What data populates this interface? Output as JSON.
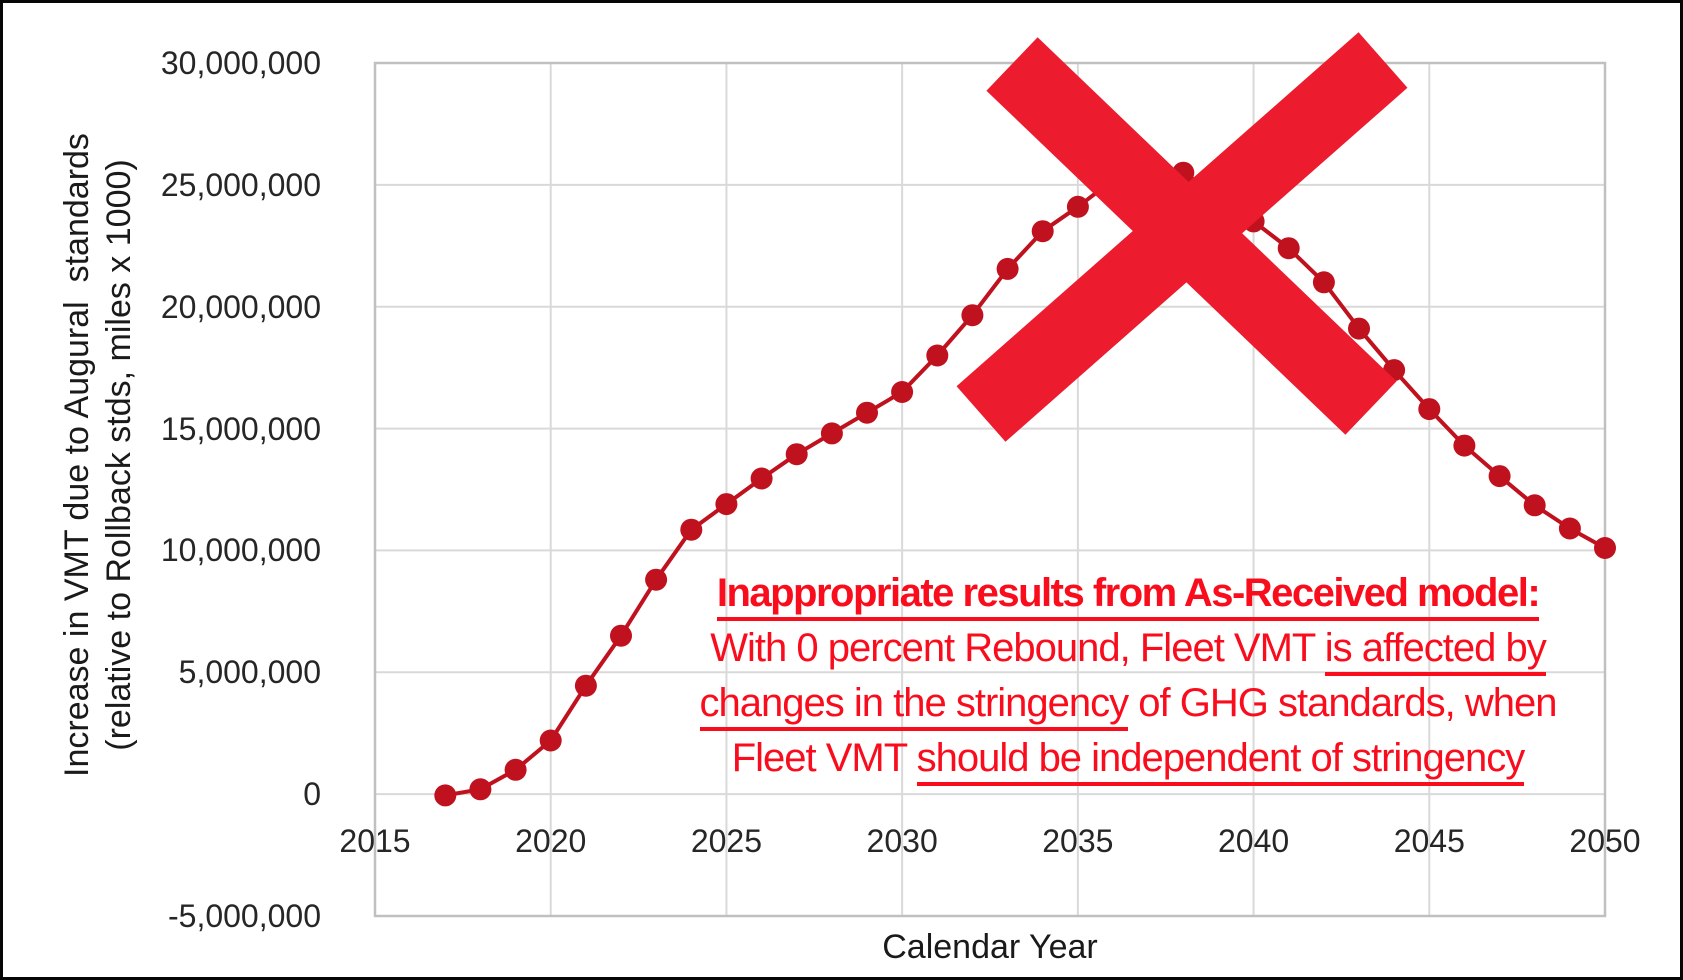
{
  "colors": {
    "background": "#FFFFFF",
    "outer_border": "#060606",
    "plot_border": "#C0C0C0",
    "gridline": "#D9D9D9",
    "tick_text": "#262626",
    "axis_title_text": "#1A1A1A",
    "series": "#C0111E",
    "red_x": "#EC1B2D",
    "annotation_text": "#F90D1D"
  },
  "y_axis": {
    "title_line1": "Increase in VMT due to Augural  standards",
    "title_line2": "(relative to Rollback stds, miles x 1000)",
    "tick_labels": [
      "30,000,000",
      "25,000,000",
      "20,000,000",
      "15,000,000",
      "10,000,000",
      "5,000,000",
      "0",
      "-5,000,000"
    ],
    "tick_values": [
      30000000,
      25000000,
      20000000,
      15000000,
      10000000,
      5000000,
      0,
      -5000000
    ]
  },
  "x_axis": {
    "title": "Calendar Year",
    "tick_labels": [
      "2015",
      "2020",
      "2025",
      "2030",
      "2035",
      "2040",
      "2045",
      "2050"
    ],
    "tick_values": [
      2015,
      2020,
      2025,
      2030,
      2035,
      2040,
      2045,
      2050
    ]
  },
  "annotation": {
    "lines": [
      {
        "bold": true,
        "segments": [
          {
            "text": "Inappropriate results from As-Received model:",
            "underline": true
          }
        ]
      },
      {
        "bold": false,
        "segments": [
          {
            "text": "With 0 percent Rebound, Fleet VMT ",
            "underline": false
          },
          {
            "text": "is affected by",
            "underline": true
          }
        ]
      },
      {
        "bold": false,
        "segments": [
          {
            "text": "changes in the stringency",
            "underline": true
          },
          {
            "text": " of GHG standards, when",
            "underline": false
          }
        ]
      },
      {
        "bold": false,
        "segments": [
          {
            "text": "Fleet VMT ",
            "underline": false
          },
          {
            "text": "should be independent of stringency",
            "underline": true
          }
        ]
      }
    ]
  },
  "red_x": {
    "arm1": [
      1009,
      61,
      1368,
      405
    ],
    "arm2": [
      1380,
      57,
      978,
      411
    ],
    "thickness": 74
  },
  "chart_data": {
    "type": "line",
    "title": "",
    "xlabel": "Calendar Year",
    "ylabel": "Increase in VMT due to Augural standards (relative to Rollback stds, miles x 1000)",
    "xlim": [
      2015,
      2050
    ],
    "ylim": [
      -5000000,
      30000000
    ],
    "x_tick_step": 5,
    "y_tick_step": 5000000,
    "grid": true,
    "legend": "none",
    "marker": "circle",
    "x": [
      2017,
      2018,
      2019,
      2020,
      2021,
      2022,
      2023,
      2024,
      2025,
      2026,
      2027,
      2028,
      2029,
      2030,
      2031,
      2032,
      2033,
      2034,
      2035,
      2036,
      2037,
      2038,
      2039,
      2040,
      2041,
      2042,
      2043,
      2044,
      2045,
      2046,
      2047,
      2048,
      2049,
      2050
    ],
    "values": [
      -50000,
      200000,
      1000000,
      2200000,
      4450000,
      6500000,
      8800000,
      10850000,
      11900000,
      12950000,
      13950000,
      14800000,
      15650000,
      16500000,
      18000000,
      19650000,
      21550000,
      23100000,
      24100000,
      25200000,
      25700000,
      25500000,
      24550000,
      23500000,
      22400000,
      21000000,
      19100000,
      17400000,
      15800000,
      14300000,
      13050000,
      11850000,
      10900000,
      10100000
    ],
    "points_hidden_by_overlay": [
      2036,
      2039,
      2040
    ]
  }
}
